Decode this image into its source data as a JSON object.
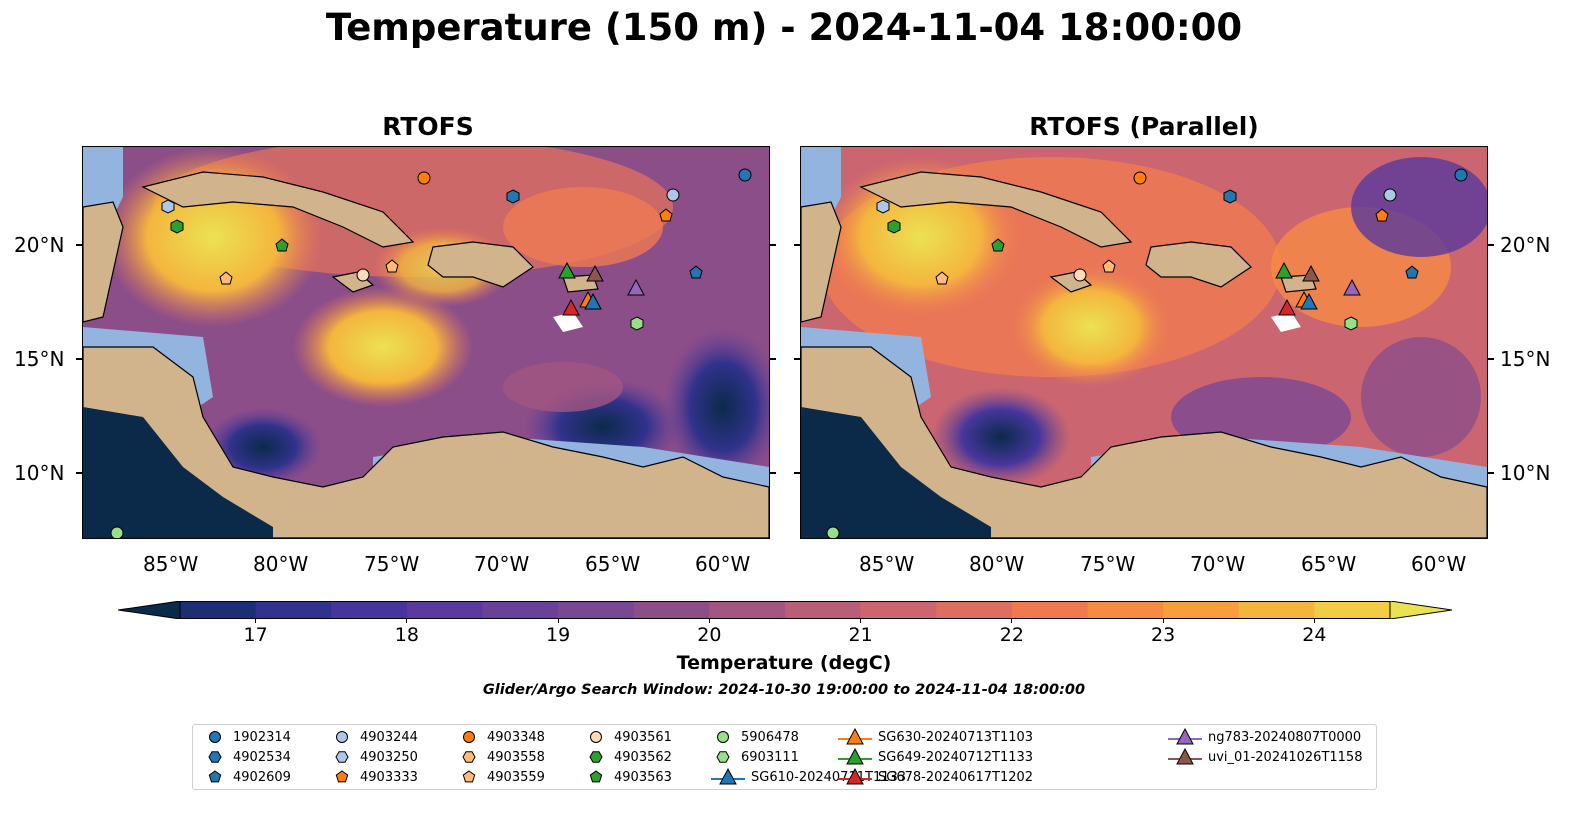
{
  "title": "Temperature (150 m) - 2024-11-04 18:00:00",
  "panels": [
    {
      "title": "RTOFS"
    },
    {
      "title": "RTOFS (Parallel)"
    }
  ],
  "axes": {
    "lat_ticks": [
      "20°N",
      "15°N",
      "10°N"
    ],
    "lon_ticks": [
      "85°W",
      "80°W",
      "75°W",
      "70°W",
      "65°W",
      "60°W"
    ]
  },
  "colorbar": {
    "label": "Temperature (degC)",
    "ticks": [
      "17",
      "18",
      "19",
      "20",
      "21",
      "22",
      "23",
      "24"
    ],
    "min": 16.5,
    "max": 24.5,
    "colors": [
      "#0b2a4a",
      "#1d2f73",
      "#30328c",
      "#46369c",
      "#5a3a9c",
      "#6a4198",
      "#7a4792",
      "#8c4e89",
      "#a35681",
      "#b85e79",
      "#cb6670",
      "#dd6f60",
      "#ef7a52",
      "#f68b45",
      "#f79f3d",
      "#f4b53e",
      "#f1cc45",
      "#ebe252"
    ],
    "extend": "both"
  },
  "search_window": "Glider/Argo Search Window: 2024-10-30 19:00:00 to 2024-11-04 18:00:00",
  "legend": {
    "entries": [
      {
        "label": "1902314",
        "marker": "circle",
        "color": "#1f77b4"
      },
      {
        "label": "4902534",
        "marker": "hexagon",
        "color": "#1f77b4"
      },
      {
        "label": "4902609",
        "marker": "pentagon",
        "color": "#1f77b4"
      },
      {
        "label": "4903244",
        "marker": "circle",
        "color": "#aec7e8"
      },
      {
        "label": "4903250",
        "marker": "hexagon",
        "color": "#aec7e8"
      },
      {
        "label": "4903333",
        "marker": "pentagon",
        "color": "#ff7f0e"
      },
      {
        "label": "4903348",
        "marker": "circle",
        "color": "#ff7f0e"
      },
      {
        "label": "4903558",
        "marker": "hexagon",
        "color": "#ffbb78"
      },
      {
        "label": "4903559",
        "marker": "pentagon",
        "color": "#ffbb78"
      },
      {
        "label": "4903561",
        "marker": "circle",
        "color": "#ffdab9"
      },
      {
        "label": "4903562",
        "marker": "hexagon",
        "color": "#2ca02c"
      },
      {
        "label": "4903563",
        "marker": "pentagon",
        "color": "#2ca02c"
      },
      {
        "label": "5906478",
        "marker": "circle",
        "color": "#98df8a"
      },
      {
        "label": "6903111",
        "marker": "hexagon",
        "color": "#98df8a"
      },
      {
        "label": "SG610-20240711T1133",
        "marker": "triangle-line",
        "color": "#1f77b4"
      },
      {
        "label": "SG630-20240713T1103",
        "marker": "triangle-line",
        "color": "#ff7f0e"
      },
      {
        "label": "SG649-20240712T1133",
        "marker": "triangle-line",
        "color": "#2ca02c"
      },
      {
        "label": "SG678-20240617T1202",
        "marker": "triangle-line",
        "color": "#d62728"
      },
      {
        "label": "ng783-20240807T0000",
        "marker": "triangle-line",
        "color": "#9467bd"
      },
      {
        "label": "uvi_01-20241026T1158",
        "marker": "triangle-line",
        "color": "#8c564b"
      }
    ]
  }
}
